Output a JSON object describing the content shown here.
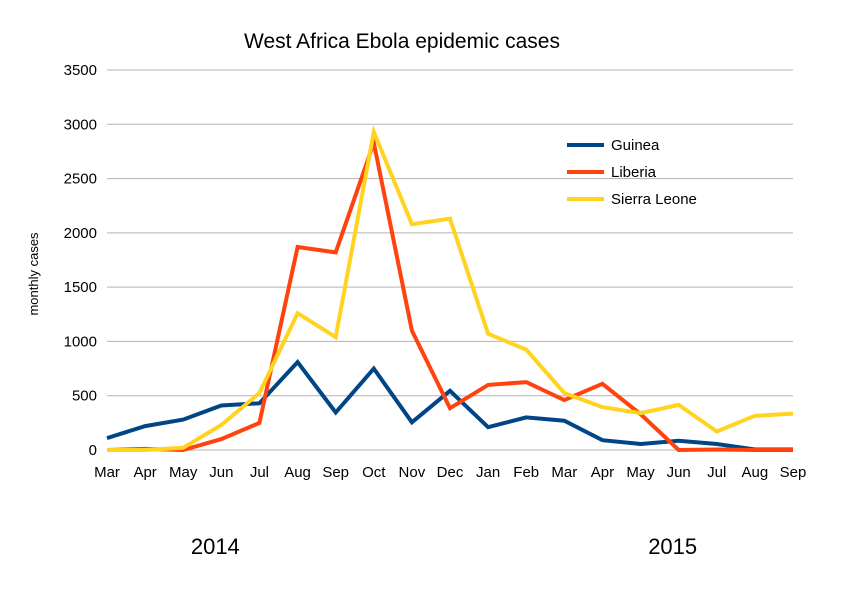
{
  "chart_data": {
    "type": "line",
    "title": "West Africa Ebola epidemic cases",
    "xlabel": "",
    "ylabel": "monthly cases",
    "ylim": [
      0,
      3500
    ],
    "yticks": [
      "0",
      "500",
      "1000",
      "1500",
      "2000",
      "2500",
      "3000",
      "3500"
    ],
    "grid": true,
    "legend_position": "top-right",
    "categories": [
      "Mar",
      "Apr",
      "May",
      "Jun",
      "Jul",
      "Aug",
      "Sep",
      "Oct",
      "Nov",
      "Dec",
      "Jan",
      "Feb",
      "Mar",
      "Apr",
      "May",
      "Jun",
      "Jul",
      "Aug",
      "Sep"
    ],
    "year_labels": [
      {
        "text": "2014",
        "category_index": 3
      },
      {
        "text": "2015",
        "category_index": 15
      }
    ],
    "series": [
      {
        "name": "Guinea",
        "color": "#004586",
        "values": [
          110,
          220,
          280,
          410,
          430,
          810,
          345,
          750,
          255,
          545,
          210,
          300,
          270,
          90,
          55,
          85,
          55,
          5,
          5
        ]
      },
      {
        "name": "Liberia",
        "color": "#ff420e",
        "values": [
          0,
          10,
          0,
          100,
          250,
          1870,
          1820,
          2830,
          1100,
          385,
          600,
          625,
          460,
          610,
          330,
          0,
          5,
          0,
          0
        ]
      },
      {
        "name": "Sierra Leone",
        "color": "#ffd320",
        "values": [
          0,
          0,
          20,
          230,
          525,
          1260,
          1040,
          2930,
          2080,
          2130,
          1070,
          925,
          525,
          395,
          340,
          415,
          170,
          315,
          335
        ]
      }
    ]
  }
}
